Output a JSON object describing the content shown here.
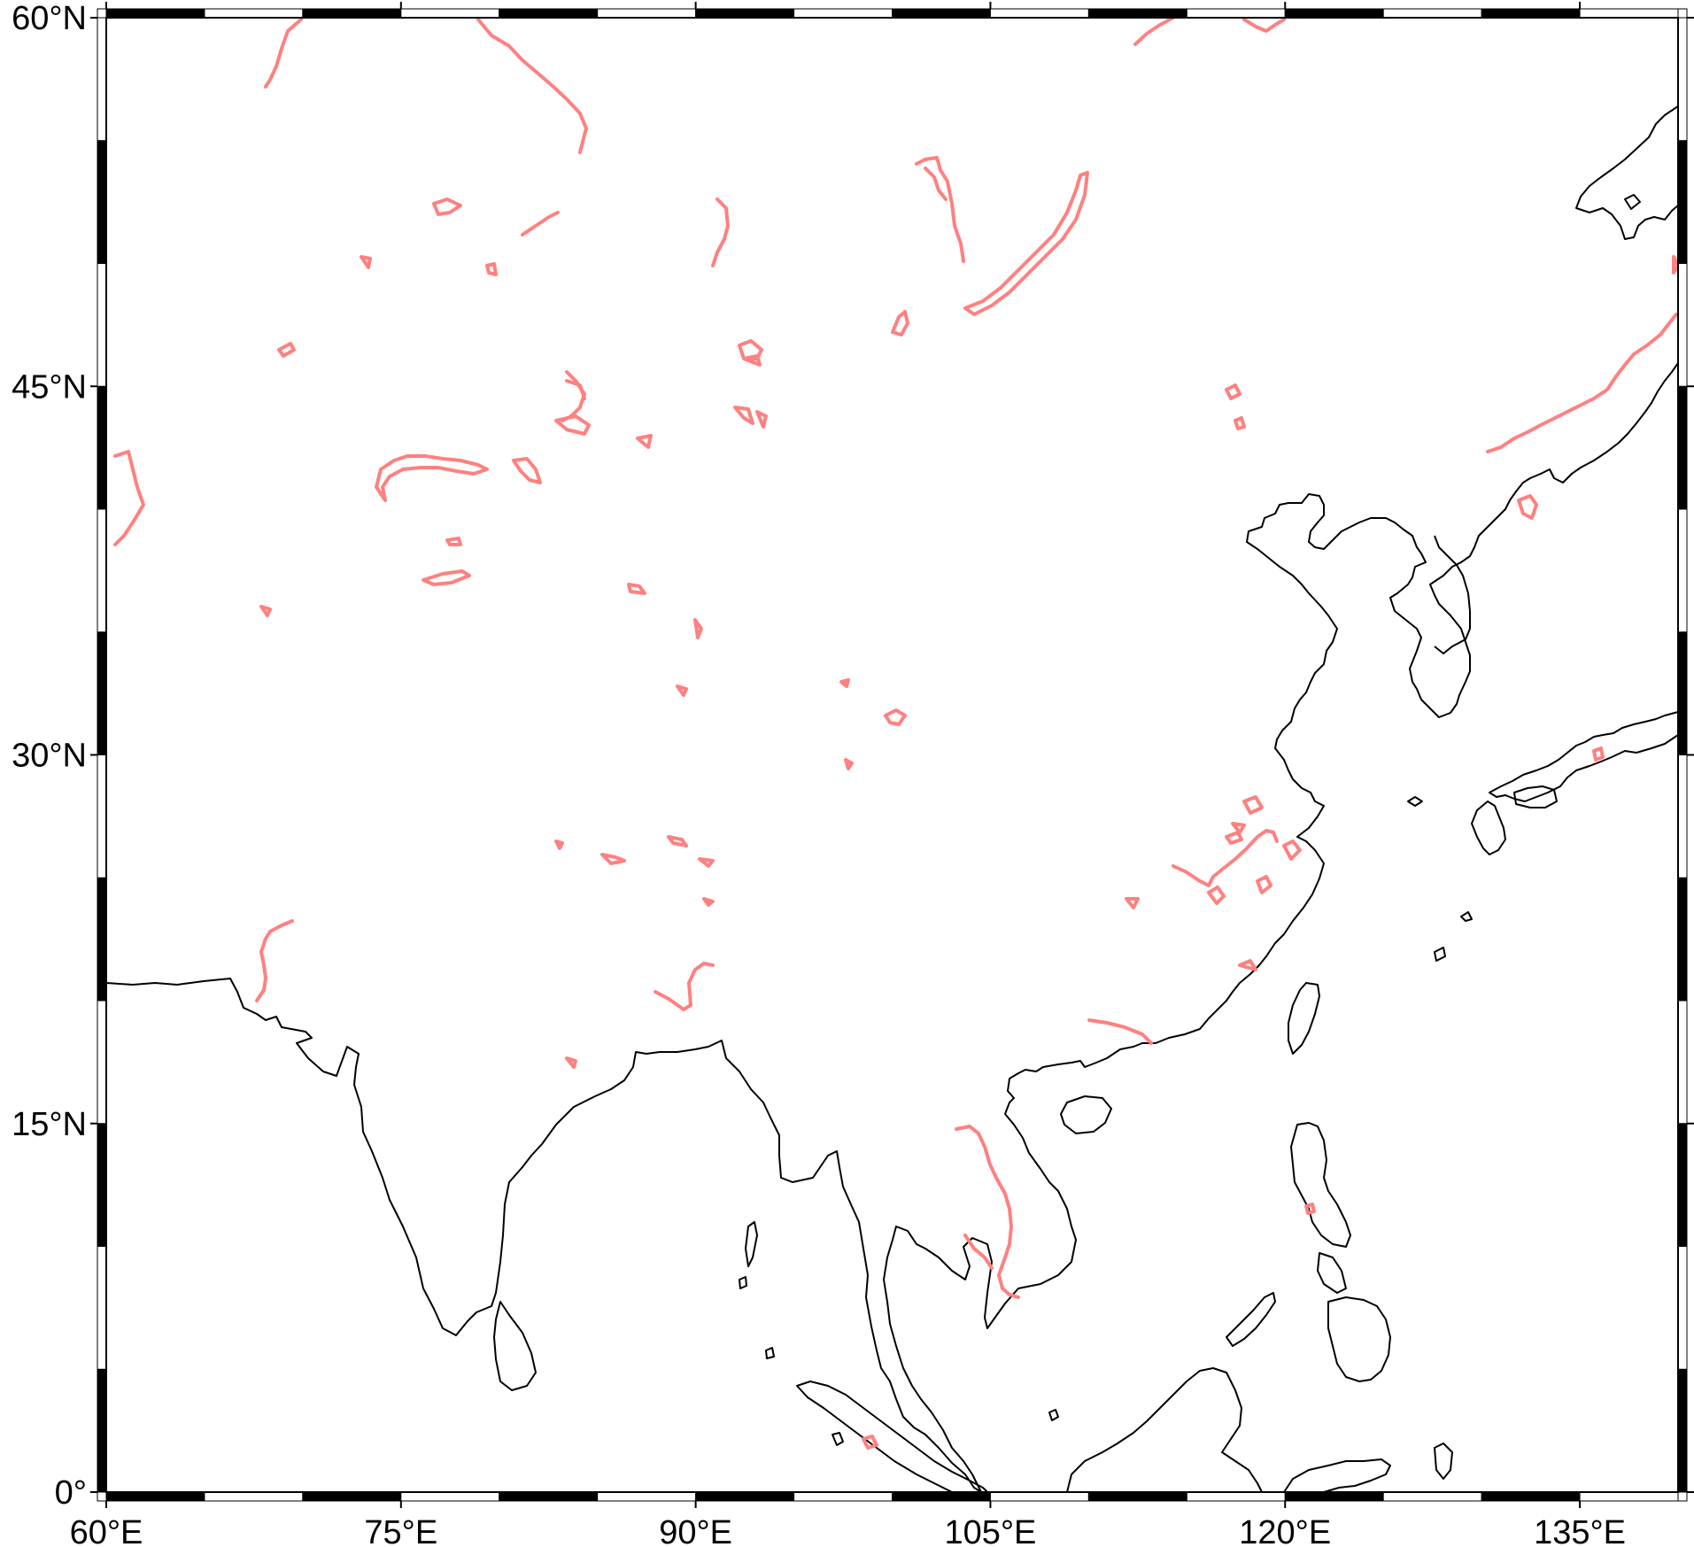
{
  "map": {
    "projection": "cartesian",
    "lon_range": [
      60,
      140
    ],
    "lat_range": [
      0,
      60
    ],
    "frame_style": "alternating black-white"
  },
  "axes": {
    "x_ticks": [
      "60°E",
      "75°E",
      "90°E",
      "105°E",
      "120°E",
      "135°E"
    ],
    "y_ticks": [
      "0°",
      "15°N",
      "30°N",
      "45°N",
      "60°N"
    ]
  },
  "colors": {
    "coastline": "#000000",
    "rivers_lakes": "#ff8080",
    "frame_dark": "#000000",
    "frame_light": "#ffffff"
  }
}
